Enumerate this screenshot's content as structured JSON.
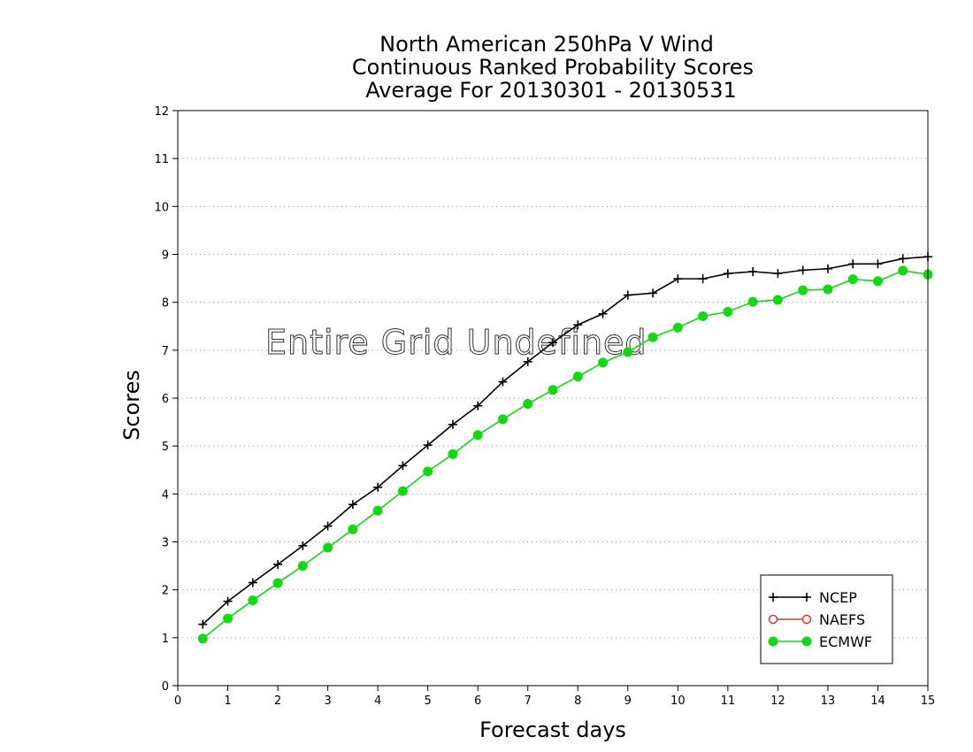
{
  "chart_data": {
    "type": "line",
    "title_lines": [
      "North American 250hPa V Wind",
      "Continuous Ranked Probability Scores",
      "Average For 20130301 - 20130531"
    ],
    "xlabel": "Forecast days",
    "ylabel": "Scores",
    "xlim": [
      0,
      15
    ],
    "ylim": [
      0,
      12
    ],
    "x_ticks": [
      "0",
      "1",
      "2",
      "3",
      "4",
      "5",
      "6",
      "7",
      "8",
      "9",
      "10",
      "11",
      "12",
      "13",
      "14",
      "15"
    ],
    "y_ticks": [
      "0",
      "1",
      "2",
      "3",
      "4",
      "5",
      "6",
      "7",
      "8",
      "9",
      "10",
      "11",
      "12"
    ],
    "grid": "horizontal dotted",
    "legend_position": "bottom-right",
    "annotation": "Entire Grid Undefined",
    "series": [
      {
        "name": "NCEP",
        "color": "#000000",
        "marker": "plus",
        "x": [
          0.5,
          1,
          1.5,
          2,
          2.5,
          3,
          3.5,
          4,
          4.5,
          5,
          5.5,
          6,
          6.5,
          7,
          7.5,
          8,
          8.5,
          9,
          9.5,
          10,
          10.5,
          11,
          11.5,
          12,
          12.5,
          13,
          13.5,
          14,
          14.5,
          15
        ],
        "values": [
          1.28,
          1.76,
          2.15,
          2.53,
          2.92,
          3.33,
          3.78,
          4.14,
          4.59,
          5.02,
          5.45,
          5.84,
          6.34,
          6.76,
          7.16,
          7.53,
          7.76,
          8.15,
          8.19,
          8.49,
          8.49,
          8.6,
          8.64,
          8.6,
          8.67,
          8.7,
          8.8,
          8.8,
          8.91,
          8.95
        ]
      },
      {
        "name": "NAEFS",
        "color": "#e83030",
        "marker": "open-circle",
        "x": [],
        "values": []
      },
      {
        "name": "ECMWF",
        "color": "#14d814",
        "marker": "filled-circle",
        "x": [
          0.5,
          1,
          1.5,
          2,
          2.5,
          3,
          3.5,
          4,
          4.5,
          5,
          5.5,
          6,
          6.5,
          7,
          7.5,
          8,
          8.5,
          9,
          9.5,
          10,
          10.5,
          11,
          11.5,
          12,
          12.5,
          13,
          13.5,
          14,
          14.5,
          15
        ],
        "values": [
          0.98,
          1.4,
          1.78,
          2.14,
          2.5,
          2.88,
          3.26,
          3.65,
          4.06,
          4.47,
          4.83,
          5.23,
          5.56,
          5.88,
          6.17,
          6.45,
          6.74,
          6.96,
          7.27,
          7.47,
          7.71,
          7.8,
          8.01,
          8.05,
          8.25,
          8.27,
          8.48,
          8.44,
          8.66,
          8.58
        ]
      }
    ]
  }
}
